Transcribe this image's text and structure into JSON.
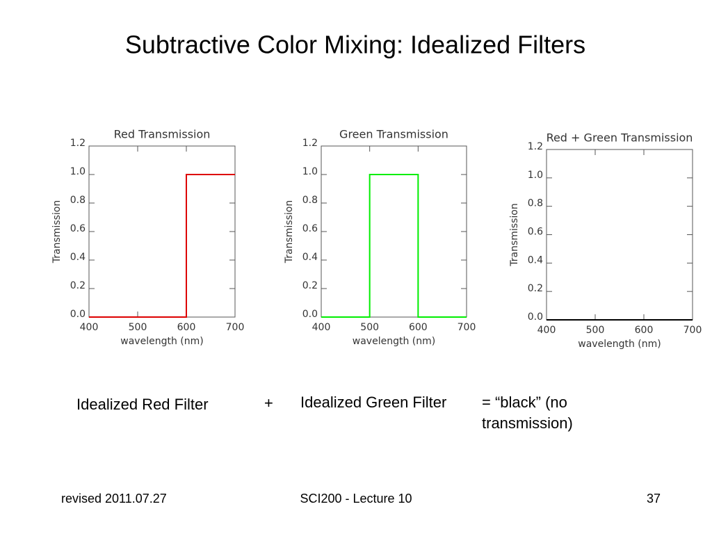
{
  "title": "Subtractive Color Mixing: Idealized Filters",
  "captions": [
    "Idealized Red Filter",
    "+",
    "Idealized Green Filter",
    [
      "= “black” (no",
      "transmission)"
    ]
  ],
  "footer": {
    "left": "revised 2011.07.27",
    "center": "SCI200 - Lecture 10",
    "right": "37"
  },
  "chart_data": [
    {
      "type": "line",
      "title": "Red Transmission",
      "x_label": "wavelength (nm)",
      "y_label": "Transmission",
      "series": [
        {
          "color": "#dd0000",
          "x": [
            400,
            600,
            600,
            700
          ],
          "values": [
            0,
            0,
            1,
            1
          ]
        }
      ],
      "xlim": [
        400,
        700
      ],
      "xticks": [
        400,
        500,
        600,
        700
      ],
      "ylim": [
        0,
        1.2
      ],
      "yticks": [
        {
          "value": 0,
          "label": "0.0"
        },
        0.2,
        0.4,
        0.6,
        0.8,
        {
          "value": 1,
          "label": "1.0"
        },
        1.2
      ]
    },
    {
      "type": "line",
      "title": "Green Transmission",
      "x_label": "wavelength (nm)",
      "y_label": "Transmission",
      "series": [
        {
          "color": "#00ee00",
          "x": [
            400,
            500,
            500,
            600,
            600,
            700
          ],
          "values": [
            0,
            0,
            1,
            1,
            0,
            0
          ]
        }
      ],
      "xlim": [
        400,
        700
      ],
      "xticks": [
        400,
        500,
        600,
        700
      ],
      "ylim": [
        0,
        1.2
      ],
      "yticks": [
        {
          "value": 0,
          "label": "0.0"
        },
        0.2,
        0.4,
        0.6,
        0.8,
        {
          "value": 1,
          "label": "1.0"
        },
        1.2
      ]
    },
    {
      "type": "line",
      "title": "Red + Green Transmission",
      "x_label": "wavelength (nm)",
      "y_label": "Transmission",
      "series": [
        {
          "color": "#000000",
          "x": [
            400,
            700
          ],
          "values": [
            0,
            0
          ]
        }
      ],
      "xlim": [
        400,
        700
      ],
      "xticks": [
        400,
        500,
        600,
        700
      ],
      "ylim": [
        0,
        1.2
      ],
      "yticks": [
        {
          "value": 0,
          "label": "0.0"
        },
        0.2,
        0.4,
        0.6,
        0.8,
        {
          "value": 1,
          "label": "1.0"
        },
        1.2
      ]
    }
  ]
}
